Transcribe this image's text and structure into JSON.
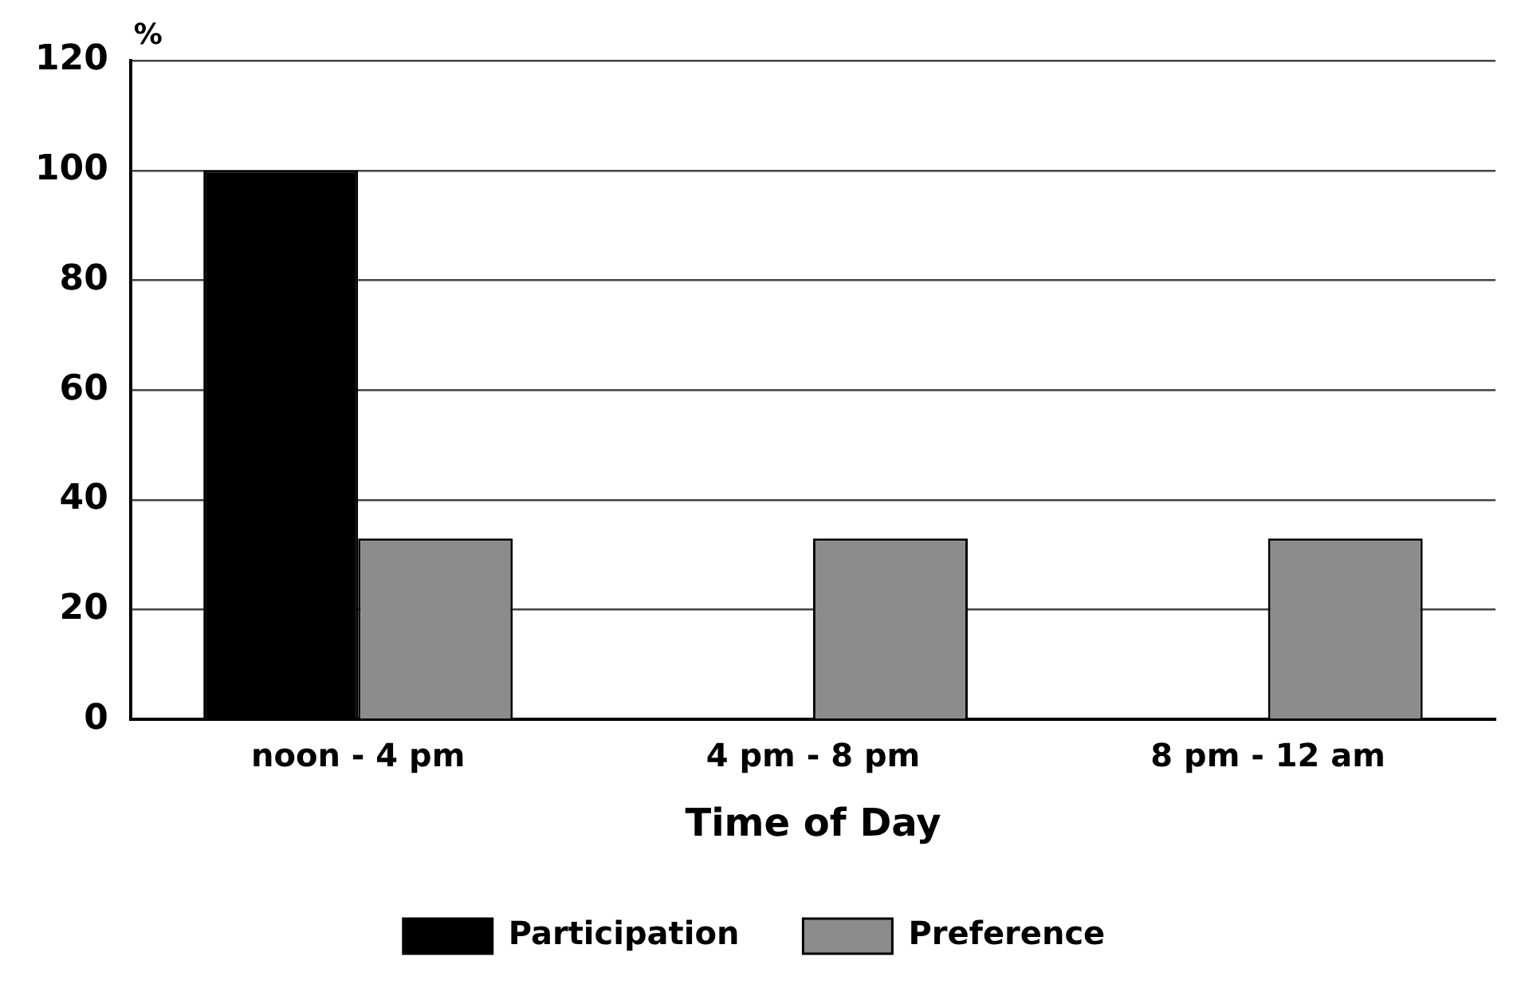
{
  "chart_data": {
    "type": "bar",
    "xlabel": "Time of Day",
    "ylabel": "%",
    "categories": [
      "noon - 4 pm",
      "4 pm - 8 pm",
      "8 pm - 12 am"
    ],
    "series": [
      {
        "name": "Participation",
        "color": "#000000",
        "values": [
          100,
          0,
          0
        ]
      },
      {
        "name": "Preference",
        "color": "#8c8c8c",
        "values": [
          33,
          33,
          33
        ]
      }
    ],
    "ylim": [
      0,
      120
    ],
    "yticks": [
      0,
      20,
      40,
      60,
      80,
      100,
      120
    ],
    "grid": "y",
    "legend": "bottom"
  }
}
